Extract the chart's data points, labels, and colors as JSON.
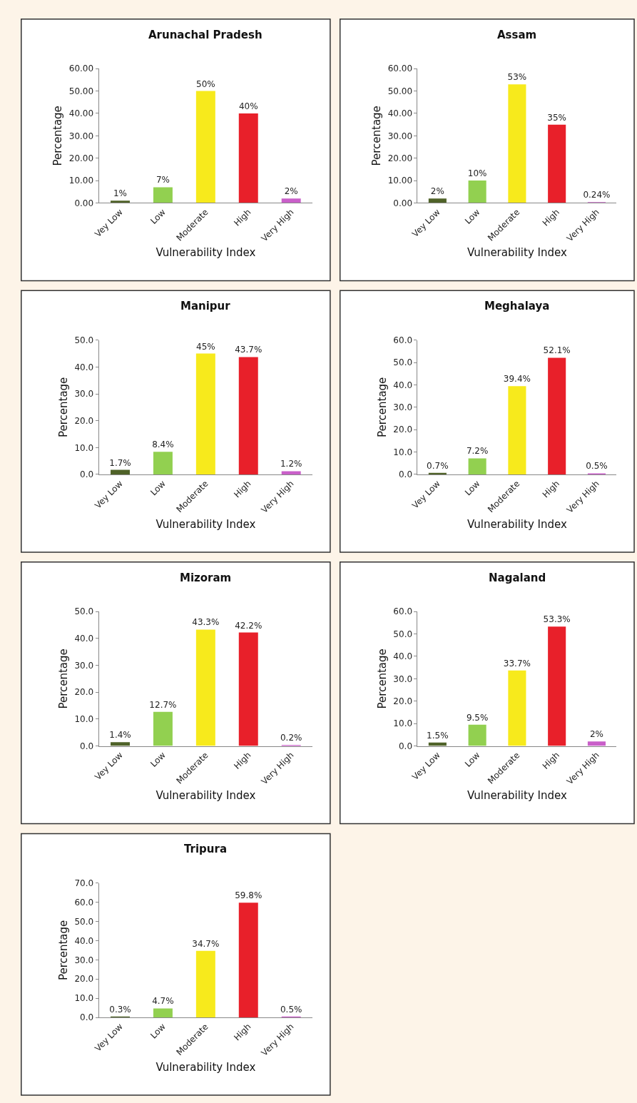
{
  "chart_data": [
    {
      "type": "bar",
      "title": "Arunachal Pradesh",
      "xlabel": "Vulnerability Index",
      "ylabel": "Percentage",
      "categories": [
        "Vey Low",
        "Low",
        "Moderate",
        "High",
        "Very High"
      ],
      "values": [
        1,
        7,
        50,
        40,
        2
      ],
      "value_labels": [
        "1%",
        "7%",
        "50%",
        "40%",
        "2%"
      ],
      "colors": [
        "#4f6228",
        "#92d050",
        "#f7ea1c",
        "#e8202a",
        "#c95fc9"
      ],
      "ylim": [
        0,
        60
      ],
      "yticks": [
        {
          "value": 0,
          "label": "0.00"
        },
        {
          "value": 10,
          "label": "10.00"
        },
        {
          "value": 20,
          "label": "20.00"
        },
        {
          "value": 30,
          "label": "30.00"
        },
        {
          "value": 40,
          "label": "40.00"
        },
        {
          "value": 50,
          "label": "50.00"
        },
        {
          "value": 60,
          "label": "60.00"
        }
      ]
    },
    {
      "type": "bar",
      "title": "Assam",
      "xlabel": "Vulnerability Index",
      "ylabel": "Percentage",
      "categories": [
        "Vey Low",
        "Low",
        "Moderate",
        "High",
        "Very High"
      ],
      "values": [
        2,
        10,
        53,
        35,
        0.24
      ],
      "value_labels": [
        "2%",
        "10%",
        "53%",
        "35%",
        "0.24%"
      ],
      "colors": [
        "#4f6228",
        "#92d050",
        "#f7ea1c",
        "#e8202a",
        "#c95fc9"
      ],
      "ylim": [
        0,
        60
      ],
      "yticks": [
        {
          "value": 0,
          "label": "0.00"
        },
        {
          "value": 10,
          "label": "10.00"
        },
        {
          "value": 20,
          "label": "20.00"
        },
        {
          "value": 30,
          "label": "30.00"
        },
        {
          "value": 40,
          "label": "40.00"
        },
        {
          "value": 50,
          "label": "50.00"
        },
        {
          "value": 60,
          "label": "60.00"
        }
      ]
    },
    {
      "type": "bar",
      "title": "Manipur",
      "xlabel": "Vulnerability Index",
      "ylabel": "Percentage",
      "categories": [
        "Vey Low",
        "Low",
        "Moderate",
        "High",
        "Very High"
      ],
      "values": [
        1.7,
        8.4,
        45,
        43.7,
        1.2
      ],
      "value_labels": [
        "1.7%",
        "8.4%",
        "45%",
        "43.7%",
        "1.2%"
      ],
      "colors": [
        "#4f6228",
        "#92d050",
        "#f7ea1c",
        "#e8202a",
        "#c95fc9"
      ],
      "ylim": [
        0,
        50
      ],
      "yticks": [
        {
          "value": 0,
          "label": "0.0"
        },
        {
          "value": 10,
          "label": "10.0"
        },
        {
          "value": 20,
          "label": "20.0"
        },
        {
          "value": 30,
          "label": "30.0"
        },
        {
          "value": 40,
          "label": "40.0"
        },
        {
          "value": 50,
          "label": "50.0"
        }
      ]
    },
    {
      "type": "bar",
      "title": "Meghalaya",
      "xlabel": "Vulnerability Index",
      "ylabel": "Percentage",
      "categories": [
        "Vey Low",
        "Low",
        "Moderate",
        "High",
        "Very High"
      ],
      "values": [
        0.7,
        7.2,
        39.4,
        52.1,
        0.5
      ],
      "value_labels": [
        "0.7%",
        "7.2%",
        "39.4%",
        "52.1%",
        "0.5%"
      ],
      "colors": [
        "#4f6228",
        "#92d050",
        "#f7ea1c",
        "#e8202a",
        "#c95fc9"
      ],
      "ylim": [
        0,
        60
      ],
      "yticks": [
        {
          "value": 0,
          "label": "0.0"
        },
        {
          "value": 10,
          "label": "10.0"
        },
        {
          "value": 20,
          "label": "20.0"
        },
        {
          "value": 30,
          "label": "30.0"
        },
        {
          "value": 40,
          "label": "40.0"
        },
        {
          "value": 50,
          "label": "50.0"
        },
        {
          "value": 60,
          "label": "60.0"
        }
      ]
    },
    {
      "type": "bar",
      "title": "Mizoram",
      "xlabel": "Vulnerability Index",
      "ylabel": "Percentage",
      "categories": [
        "Vey Low",
        "Low",
        "Moderate",
        "High",
        "Very High"
      ],
      "values": [
        1.4,
        12.7,
        43.3,
        42.2,
        0.2
      ],
      "value_labels": [
        "1.4%",
        "12.7%",
        "43.3%",
        "42.2%",
        "0.2%"
      ],
      "colors": [
        "#4f6228",
        "#92d050",
        "#f7ea1c",
        "#e8202a",
        "#c95fc9"
      ],
      "ylim": [
        0,
        50
      ],
      "yticks": [
        {
          "value": 0,
          "label": "0.0"
        },
        {
          "value": 10,
          "label": "10.0"
        },
        {
          "value": 20,
          "label": "20.0"
        },
        {
          "value": 30,
          "label": "30.0"
        },
        {
          "value": 40,
          "label": "40.0"
        },
        {
          "value": 50,
          "label": "50.0"
        }
      ]
    },
    {
      "type": "bar",
      "title": "Nagaland",
      "xlabel": "Vulnerability Index",
      "ylabel": "Percentage",
      "categories": [
        "Vey Low",
        "Low",
        "Moderate",
        "High",
        "Very High"
      ],
      "values": [
        1.5,
        9.5,
        33.7,
        53.3,
        2
      ],
      "value_labels": [
        "1.5%",
        "9.5%",
        "33.7%",
        "53.3%",
        "2%"
      ],
      "colors": [
        "#4f6228",
        "#92d050",
        "#f7ea1c",
        "#e8202a",
        "#c95fc9"
      ],
      "ylim": [
        0,
        60
      ],
      "yticks": [
        {
          "value": 0,
          "label": "0.0"
        },
        {
          "value": 10,
          "label": "10.0"
        },
        {
          "value": 20,
          "label": "20.0"
        },
        {
          "value": 30,
          "label": "30.0"
        },
        {
          "value": 40,
          "label": "40.0"
        },
        {
          "value": 50,
          "label": "50.0"
        },
        {
          "value": 60,
          "label": "60.0"
        }
      ]
    },
    {
      "type": "bar",
      "title": "Tripura",
      "xlabel": "Vulnerability Index",
      "ylabel": "Percentage",
      "categories": [
        "Vey Low",
        "Low",
        "Moderate",
        "High",
        "Very High"
      ],
      "values": [
        0.3,
        4.7,
        34.7,
        59.8,
        0.5
      ],
      "value_labels": [
        "0.3%",
        "4.7%",
        "34.7%",
        "59.8%",
        "0.5%"
      ],
      "colors": [
        "#4f6228",
        "#92d050",
        "#f7ea1c",
        "#e8202a",
        "#c95fc9"
      ],
      "ylim": [
        0,
        70
      ],
      "yticks": [
        {
          "value": 0,
          "label": "0.0"
        },
        {
          "value": 10,
          "label": "10.0"
        },
        {
          "value": 20,
          "label": "20.0"
        },
        {
          "value": 30,
          "label": "30.0"
        },
        {
          "value": 40,
          "label": "40.0"
        },
        {
          "value": 50,
          "label": "50.0"
        },
        {
          "value": 60,
          "label": "60.0"
        },
        {
          "value": 70,
          "label": "70.0"
        }
      ]
    }
  ]
}
